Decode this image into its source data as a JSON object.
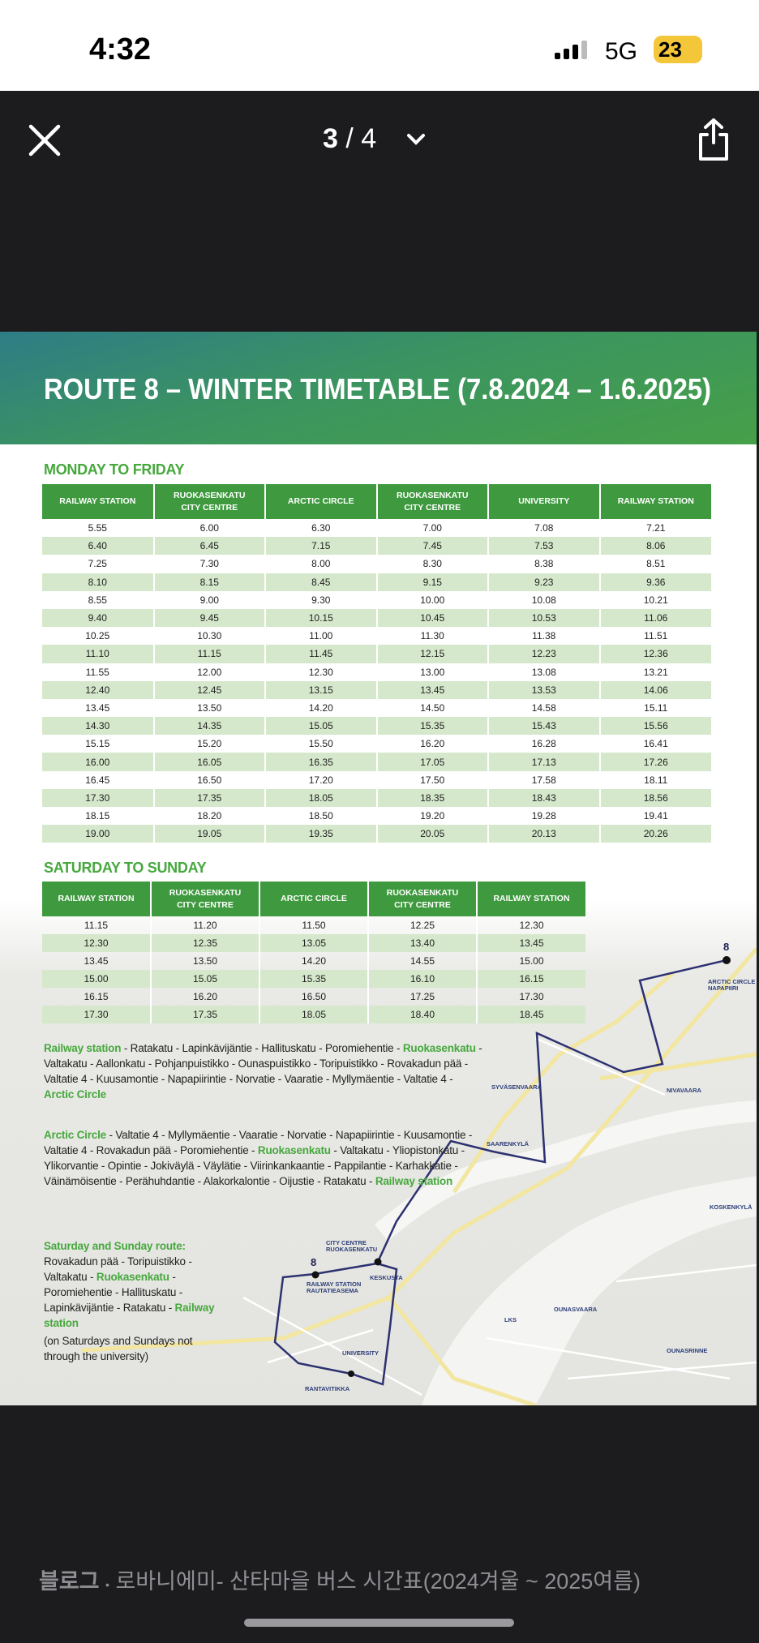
{
  "status": {
    "time": "4:32",
    "network": "5G",
    "battery": "23"
  },
  "viewer": {
    "current": "3",
    "separator": "/",
    "total": "4"
  },
  "timetable": {
    "title": "ROUTE 8 – WINTER TIMETABLE (7.8.2024 – 1.6.2025)",
    "weekday": {
      "heading": "MONDAY TO FRIDAY",
      "columns": [
        "RAILWAY STATION",
        "RUOKASENKATU\nCITY CENTRE",
        "ARCTIC CIRCLE",
        "RUOKASENKATU\nCITY CENTRE",
        "UNIVERSITY",
        "RAILWAY STATION"
      ],
      "rows": [
        [
          "5.55",
          "6.00",
          "6.30",
          "7.00",
          "7.08",
          "7.21"
        ],
        [
          "6.40",
          "6.45",
          "7.15",
          "7.45",
          "7.53",
          "8.06"
        ],
        [
          "7.25",
          "7.30",
          "8.00",
          "8.30",
          "8.38",
          "8.51"
        ],
        [
          "8.10",
          "8.15",
          "8.45",
          "9.15",
          "9.23",
          "9.36"
        ],
        [
          "8.55",
          "9.00",
          "9.30",
          "10.00",
          "10.08",
          "10.21"
        ],
        [
          "9.40",
          "9.45",
          "10.15",
          "10.45",
          "10.53",
          "11.06"
        ],
        [
          "10.25",
          "10.30",
          "11.00",
          "11.30",
          "11.38",
          "11.51"
        ],
        [
          "11.10",
          "11.15",
          "11.45",
          "12.15",
          "12.23",
          "12.36"
        ],
        [
          "11.55",
          "12.00",
          "12.30",
          "13.00",
          "13.08",
          "13.21"
        ],
        [
          "12.40",
          "12.45",
          "13.15",
          "13.45",
          "13.53",
          "14.06"
        ],
        [
          "13.45",
          "13.50",
          "14.20",
          "14.50",
          "14.58",
          "15.11"
        ],
        [
          "14.30",
          "14.35",
          "15.05",
          "15.35",
          "15.43",
          "15.56"
        ],
        [
          "15.15",
          "15.20",
          "15.50",
          "16.20",
          "16.28",
          "16.41"
        ],
        [
          "16.00",
          "16.05",
          "16.35",
          "17.05",
          "17.13",
          "17.26"
        ],
        [
          "16.45",
          "16.50",
          "17.20",
          "17.50",
          "17.58",
          "18.11"
        ],
        [
          "17.30",
          "17.35",
          "18.05",
          "18.35",
          "18.43",
          "18.56"
        ],
        [
          "18.15",
          "18.20",
          "18.50",
          "19.20",
          "19.28",
          "19.41"
        ],
        [
          "19.00",
          "19.05",
          "19.35",
          "20.05",
          "20.13",
          "20.26"
        ]
      ]
    },
    "weekend": {
      "heading": "SATURDAY TO SUNDAY",
      "columns": [
        "RAILWAY STATION",
        "RUOKASENKATU\nCITY CENTRE",
        "ARCTIC CIRCLE",
        "RUOKASENKATU\nCITY CENTRE",
        "RAILWAY STATION"
      ],
      "rows": [
        [
          "11.15",
          "11.20",
          "11.50",
          "12.25",
          "12.30"
        ],
        [
          "12.30",
          "12.35",
          "13.05",
          "13.40",
          "13.45"
        ],
        [
          "13.45",
          "13.50",
          "14.20",
          "14.55",
          "15.00"
        ],
        [
          "15.00",
          "15.05",
          "15.35",
          "16.10",
          "16.15"
        ],
        [
          "16.15",
          "16.20",
          "16.50",
          "17.25",
          "17.30"
        ],
        [
          "17.30",
          "17.35",
          "18.05",
          "18.40",
          "18.45"
        ]
      ]
    },
    "routes": [
      [
        {
          "text": "Railway station",
          "green": true
        },
        {
          "text": " - Ratakatu - Lapinkävijäntie - Hallituskatu - Poromiehentie - "
        },
        {
          "text": "Ruokasenkatu",
          "green": true
        },
        {
          "text": " - Valtakatu - Aallonkatu - Pohjanpuistikko - Ounaspuistikko - Toripuistikko - Rovakadun pää - Valtatie 4 - Kuusamontie - Napapiirintie - Norvatie - Vaaratie - Myllymäentie - Valtatie 4 - "
        },
        {
          "text": "Arctic Circle",
          "green": true
        }
      ],
      [
        {
          "text": "Arctic Circle",
          "green": true
        },
        {
          "text": " - Valtatie 4 - Myllymäentie - Vaaratie - Norvatie - Napapiirintie - Kuusamontie - Valtatie 4 - Rovakadun pää - Poromiehentie - "
        },
        {
          "text": "Ruokasenkatu",
          "green": true
        },
        {
          "text": " - Valtakatu - Yliopistonkatu - Ylikorvantie - Opintie - Jokiväylä - Väylätie - Viirinkankaantie - Pappilantie - Karhakkatie - Väinämöisentie - Perähuhdantie - Alakorkalontie - Oijustie - Ratakatu - "
        },
        {
          "text": "Railway station",
          "green": true
        }
      ],
      [
        {
          "text": "Saturday and Sunday route:",
          "green": true
        },
        {
          "text": " Rovakadun pää - Toripuistikko - Valtakatu - "
        },
        {
          "text": "Ruokasenkatu",
          "green": true
        },
        {
          "text": " - Poromiehentie - Hallituskatu - Lapinkävijäntie - Ratakatu - "
        },
        {
          "text": "Railway station",
          "green": true
        }
      ]
    ],
    "note": "(on Saturdays and Sundays not through the university)",
    "map_labels": [
      "8",
      "ARCTIC CIRCLE\nNAPAPIIRI",
      "SYVÄSENVAARA",
      "NIVAVAARA",
      "SAARENKYLÄ",
      "KOSKENKYLÄ",
      "CITY CENTRE\nRUOKASENKATU",
      "KESKUSTA",
      "8",
      "RAILWAY STATION\nRAUTATIEASEMA",
      "LKS",
      "OUNASVAARA",
      "UNIVERSITY",
      "OUNASRINNE",
      "RANTAVITIKKA"
    ]
  },
  "caption": {
    "source": "블로그",
    "text": "로바니에미- 산타마을 버스 시간표(2024겨울 ~ 2025여름)"
  }
}
